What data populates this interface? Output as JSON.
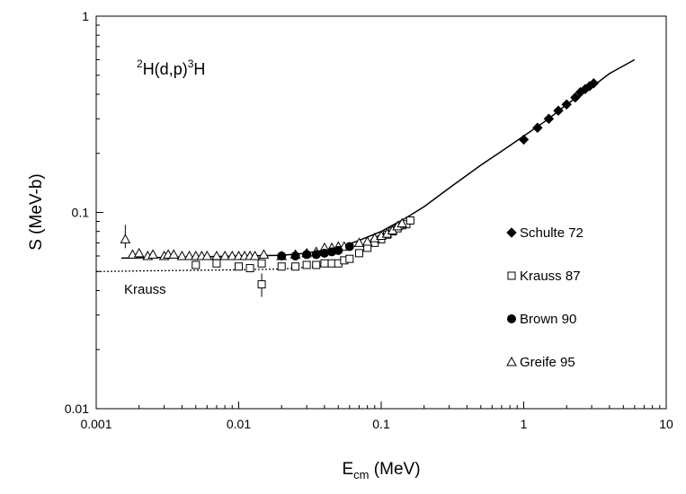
{
  "chart_data": {
    "type": "scatter",
    "title": "",
    "reaction_label": {
      "sup_a": "2",
      "main_a": "H(d,p)",
      "sup_b": "3",
      "main_b": "H"
    },
    "xlabel": {
      "main": "E",
      "sub": "cm",
      "unit": " (MeV)"
    },
    "ylabel": "S (MeV-b)",
    "xscale": "log",
    "yscale": "log",
    "xlim": [
      0.001,
      10
    ],
    "ylim": [
      0.01,
      1
    ],
    "x_ticks": [
      {
        "value": 0.001,
        "label": "0.001"
      },
      {
        "value": 0.01,
        "label": "0.01"
      },
      {
        "value": 0.1,
        "label": "0.1"
      },
      {
        "value": 1,
        "label": "1"
      },
      {
        "value": 10,
        "label": "10"
      }
    ],
    "y_ticks": [
      {
        "value": 0.01,
        "label": "0.01"
      },
      {
        "value": 0.1,
        "label": "0.1"
      },
      {
        "value": 1,
        "label": "1"
      }
    ],
    "grid": false,
    "legend_position": "right",
    "annotation": "Krauss",
    "fit_curve": {
      "x": [
        0.0015,
        0.003,
        0.006,
        0.01,
        0.02,
        0.03,
        0.05,
        0.07,
        0.1,
        0.15,
        0.2,
        0.3,
        0.5,
        0.7,
        1.0,
        1.5,
        2.0,
        3.0,
        4.0,
        6.0
      ],
      "y": [
        0.0585,
        0.059,
        0.0595,
        0.06,
        0.0605,
        0.062,
        0.066,
        0.072,
        0.08,
        0.094,
        0.107,
        0.133,
        0.174,
        0.205,
        0.245,
        0.3,
        0.355,
        0.435,
        0.51,
        0.6
      ]
    },
    "krauss_curve": {
      "x": [
        0.001,
        0.003,
        0.01,
        0.02,
        0.03,
        0.04,
        0.05,
        0.06
      ],
      "y": [
        0.05,
        0.0505,
        0.051,
        0.0515,
        0.0525,
        0.0535,
        0.0545,
        0.056
      ]
    },
    "series": [
      {
        "name": "Schulte 72",
        "marker": "diamond",
        "points": [
          [
            1.0,
            0.235
          ],
          [
            1.25,
            0.27
          ],
          [
            1.5,
            0.3
          ],
          [
            1.75,
            0.33
          ],
          [
            2.0,
            0.355
          ],
          [
            2.3,
            0.385
          ],
          [
            2.5,
            0.41
          ],
          [
            2.7,
            0.425
          ],
          [
            2.9,
            0.44
          ],
          [
            3.1,
            0.455
          ]
        ]
      },
      {
        "name": "Krauss 87",
        "marker": "open-square",
        "points": [
          [
            0.005,
            0.054
          ],
          [
            0.007,
            0.055
          ],
          [
            0.01,
            0.053
          ],
          [
            0.012,
            0.052
          ],
          [
            0.0145,
            0.055
          ],
          [
            0.0145,
            0.043
          ],
          [
            0.02,
            0.053
          ],
          [
            0.025,
            0.053
          ],
          [
            0.03,
            0.054
          ],
          [
            0.035,
            0.054
          ],
          [
            0.04,
            0.055
          ],
          [
            0.045,
            0.055
          ],
          [
            0.05,
            0.055
          ],
          [
            0.055,
            0.057
          ],
          [
            0.06,
            0.058
          ],
          [
            0.07,
            0.062
          ],
          [
            0.08,
            0.066
          ],
          [
            0.09,
            0.07
          ],
          [
            0.1,
            0.073
          ],
          [
            0.11,
            0.077
          ],
          [
            0.12,
            0.08
          ],
          [
            0.13,
            0.083
          ],
          [
            0.14,
            0.086
          ],
          [
            0.15,
            0.087
          ],
          [
            0.16,
            0.091
          ]
        ]
      },
      {
        "name": "Brown 90",
        "marker": "filled-circle",
        "points": [
          [
            0.02,
            0.06
          ],
          [
            0.025,
            0.06
          ],
          [
            0.03,
            0.061
          ],
          [
            0.035,
            0.061
          ],
          [
            0.04,
            0.062
          ],
          [
            0.045,
            0.063
          ],
          [
            0.05,
            0.064
          ],
          [
            0.06,
            0.067
          ]
        ]
      },
      {
        "name": "Greife 95",
        "marker": "open-triangle",
        "points": [
          [
            0.0016,
            0.073
          ],
          [
            0.0018,
            0.061
          ],
          [
            0.002,
            0.062
          ],
          [
            0.0023,
            0.06
          ],
          [
            0.0025,
            0.061
          ],
          [
            0.003,
            0.06
          ],
          [
            0.0032,
            0.061
          ],
          [
            0.0035,
            0.061
          ],
          [
            0.004,
            0.06
          ],
          [
            0.0045,
            0.06
          ],
          [
            0.005,
            0.06
          ],
          [
            0.0055,
            0.06
          ],
          [
            0.006,
            0.06
          ],
          [
            0.007,
            0.06
          ],
          [
            0.008,
            0.06
          ],
          [
            0.009,
            0.06
          ],
          [
            0.01,
            0.06
          ],
          [
            0.011,
            0.06
          ],
          [
            0.012,
            0.06
          ],
          [
            0.013,
            0.06
          ],
          [
            0.015,
            0.061
          ],
          [
            0.02,
            0.06
          ],
          [
            0.025,
            0.061
          ],
          [
            0.03,
            0.062
          ],
          [
            0.035,
            0.063
          ],
          [
            0.04,
            0.066
          ],
          [
            0.045,
            0.066
          ],
          [
            0.05,
            0.067
          ],
          [
            0.055,
            0.067
          ],
          [
            0.07,
            0.07
          ],
          [
            0.08,
            0.071
          ],
          [
            0.09,
            0.074
          ],
          [
            0.1,
            0.076
          ],
          [
            0.11,
            0.078
          ],
          [
            0.12,
            0.081
          ],
          [
            0.13,
            0.085
          ],
          [
            0.14,
            0.088
          ]
        ]
      }
    ]
  }
}
